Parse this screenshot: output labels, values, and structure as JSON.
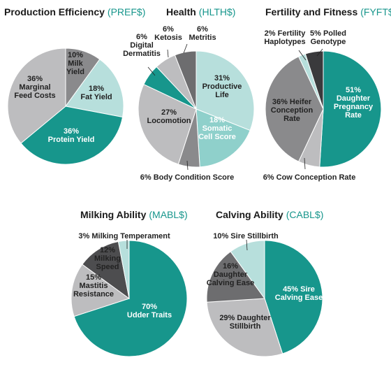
{
  "colors": {
    "teal": "#17968c",
    "light_teal": "#8fd0cb",
    "pale_teal": "#b7dfdc",
    "dark_gray": "#4d4d4f",
    "mid_gray": "#8a8a8c",
    "light_gray": "#bdbdbf",
    "accent_text": "#17968c"
  },
  "chart_data": [
    {
      "type": "pie",
      "title": "Production Efficiency",
      "code": "(PREF$)",
      "slices": [
        {
          "label": "10% Milk Yield",
          "value": 10,
          "color": "#8a8a8c"
        },
        {
          "label": "18% Fat Yield",
          "value": 18,
          "color": "#b7dfdc"
        },
        {
          "label": "36% Protein Yield",
          "value": 36,
          "color": "#17968c"
        },
        {
          "label": "36% Marginal Feed Costs",
          "value": 36,
          "color": "#bdbdbf"
        }
      ]
    },
    {
      "type": "pie",
      "title": "Health",
      "code": "(HLTH$)",
      "slices": [
        {
          "label": "31% Productive Life",
          "value": 31,
          "color": "#b7dfdc"
        },
        {
          "label": "18% Somatic Cell Score",
          "value": 18,
          "color": "#8fd0cb"
        },
        {
          "label": "6% Body Condition Score",
          "value": 6,
          "color": "#8a8a8c"
        },
        {
          "label": "27% Locomotion",
          "value": 27,
          "color": "#bdbdbf"
        },
        {
          "label": "6% Digital Dermatitis",
          "value": 6,
          "color": "#17968c"
        },
        {
          "label": "6% Ketosis",
          "value": 6,
          "color": "#bdbdbf"
        },
        {
          "label": "6% Metritis",
          "value": 6,
          "color": "#6d6d6f"
        }
      ]
    },
    {
      "type": "pie",
      "title": "Fertility and Fitness",
      "code": "(FYFT$)",
      "slices": [
        {
          "label": "51% Daughter Pregnancy Rate",
          "value": 51,
          "color": "#17968c"
        },
        {
          "label": "6% Cow Conception Rate",
          "value": 6,
          "color": "#bdbdbf"
        },
        {
          "label": "36% Heifer Conception Rate",
          "value": 36,
          "color": "#8a8a8c"
        },
        {
          "label": "2% Fertility Haplotypes",
          "value": 2,
          "color": "#b7dfdc"
        },
        {
          "label": "5% Polled Genotype",
          "value": 5,
          "color": "#3a3a3c"
        }
      ]
    },
    {
      "type": "pie",
      "title": "Milking Ability",
      "code": "(MABL$)",
      "slices": [
        {
          "label": "70% Udder Traits",
          "value": 70,
          "color": "#17968c"
        },
        {
          "label": "15% Mastitis Resistance",
          "value": 15,
          "color": "#bdbdbf"
        },
        {
          "label": "12% Milking Speed",
          "value": 12,
          "color": "#4d4d4f"
        },
        {
          "label": "3% Milking Temperament",
          "value": 3,
          "color": "#b7dfdc"
        }
      ]
    },
    {
      "type": "pie",
      "title": "Calving Ability",
      "code": "(CABL$)",
      "slices": [
        {
          "label": "45% Sire Calving Ease",
          "value": 45,
          "color": "#17968c"
        },
        {
          "label": "29% Daughter Stillbirth",
          "value": 29,
          "color": "#bdbdbf"
        },
        {
          "label": "16% Daughter Calving Ease",
          "value": 16,
          "color": "#6d6d6f"
        },
        {
          "label": "10% Sire Stillbirth",
          "value": 10,
          "color": "#b7dfdc"
        }
      ]
    }
  ]
}
